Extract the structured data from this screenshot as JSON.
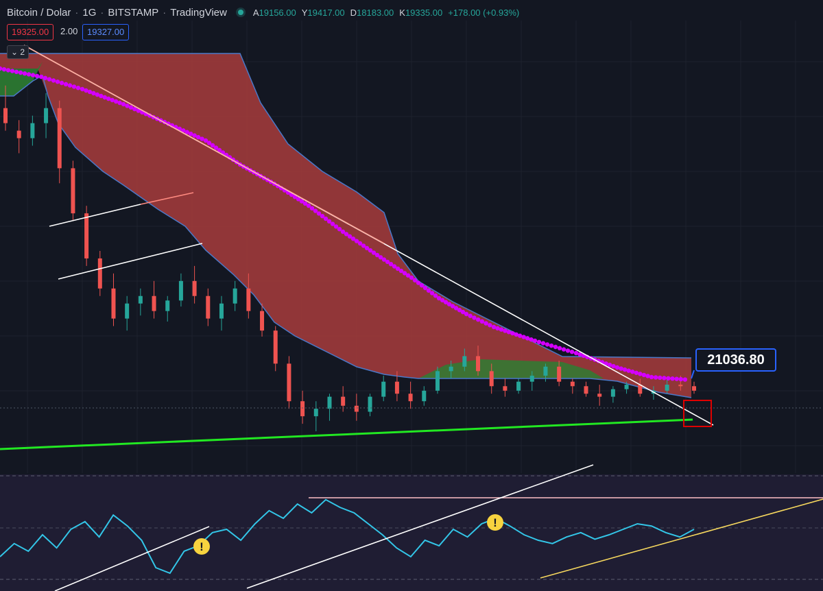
{
  "header": {
    "symbol": "Bitcoin / Dolar",
    "interval": "1G",
    "exchange": "BITSTAMP",
    "platform": "TradingView",
    "ohlc": [
      {
        "k": "A",
        "v": "19156.00"
      },
      {
        "k": "Y",
        "v": "19417.00"
      },
      {
        "k": "D",
        "v": "18183.00"
      },
      {
        "k": "K",
        "v": "19335.00"
      },
      {
        "k": "",
        "v": "+178.00 (+0.93%)"
      }
    ],
    "bid": "19325.00",
    "spread": "2.00",
    "ask": "19327.00",
    "indicator_count": "2"
  },
  "annotation": {
    "price_label": "21036.80",
    "warning_symbol": "!"
  },
  "colors": {
    "background": "#131722",
    "candle_up": "#26a69a",
    "candle_down": "#ef5350",
    "cloud_bear": "#a83c3c",
    "cloud_bull": "#2e7d32",
    "cloud_edge": "#4a78c8",
    "dotted_ma": "#d400ff",
    "support": "#22e822",
    "rsi_line": "#33c6e8",
    "rsi_trend": "#f7d85e",
    "highlight_box": "#e00000"
  },
  "chart_data": [
    {
      "type": "candlestick",
      "ohlc": [
        [
          1,
          2.2,
          2.35,
          2.05,
          2.1
        ],
        [
          2,
          2.05,
          2.12,
          1.9,
          2.0
        ],
        [
          3,
          2.0,
          2.15,
          1.95,
          2.1
        ],
        [
          4,
          2.1,
          2.3,
          2.0,
          2.2
        ],
        [
          5,
          2.2,
          2.25,
          1.7,
          1.8
        ],
        [
          6,
          1.8,
          1.85,
          1.45,
          1.5
        ],
        [
          7,
          1.5,
          1.55,
          1.15,
          1.2
        ],
        [
          8,
          1.2,
          1.25,
          0.95,
          1.0
        ],
        [
          9,
          1.0,
          1.1,
          0.75,
          0.8
        ],
        [
          10,
          0.8,
          0.95,
          0.72,
          0.9
        ],
        [
          11,
          0.9,
          1.0,
          0.82,
          0.95
        ],
        [
          12,
          0.95,
          1.05,
          0.8,
          0.85
        ],
        [
          13,
          0.85,
          0.95,
          0.78,
          0.92
        ],
        [
          14,
          0.92,
          1.1,
          0.88,
          1.05
        ],
        [
          15,
          1.05,
          1.15,
          0.9,
          0.95
        ],
        [
          16,
          0.95,
          1.0,
          0.75,
          0.8
        ],
        [
          17,
          0.8,
          0.95,
          0.72,
          0.9
        ],
        [
          18,
          0.9,
          1.05,
          0.85,
          1.0
        ],
        [
          19,
          1.0,
          1.1,
          0.8,
          0.85
        ],
        [
          20,
          0.85,
          0.9,
          0.68,
          0.72
        ],
        [
          21,
          0.72,
          0.75,
          0.45,
          0.5
        ],
        [
          22,
          0.5,
          0.55,
          0.2,
          0.25
        ],
        [
          23,
          0.25,
          0.32,
          0.1,
          0.15
        ],
        [
          24,
          0.15,
          0.25,
          0.05,
          0.2
        ],
        [
          25,
          0.2,
          0.3,
          0.12,
          0.28
        ],
        [
          26,
          0.28,
          0.35,
          0.18,
          0.22
        ],
        [
          27,
          0.22,
          0.3,
          0.12,
          0.18
        ],
        [
          28,
          0.18,
          0.3,
          0.15,
          0.28
        ],
        [
          29,
          0.28,
          0.42,
          0.25,
          0.38
        ],
        [
          30,
          0.38,
          0.45,
          0.25,
          0.3
        ],
        [
          31,
          0.3,
          0.38,
          0.2,
          0.25
        ],
        [
          32,
          0.25,
          0.35,
          0.22,
          0.32
        ],
        [
          33,
          0.32,
          0.48,
          0.3,
          0.45
        ],
        [
          34,
          0.45,
          0.52,
          0.4,
          0.48
        ],
        [
          35,
          0.48,
          0.6,
          0.45,
          0.55
        ],
        [
          36,
          0.55,
          0.62,
          0.42,
          0.45
        ],
        [
          37,
          0.45,
          0.5,
          0.3,
          0.35
        ],
        [
          38,
          0.35,
          0.4,
          0.28,
          0.32
        ],
        [
          39,
          0.32,
          0.4,
          0.3,
          0.38
        ],
        [
          40,
          0.38,
          0.45,
          0.32,
          0.42
        ],
        [
          41,
          0.42,
          0.5,
          0.38,
          0.48
        ],
        [
          42,
          0.48,
          0.52,
          0.35,
          0.38
        ],
        [
          43,
          0.38,
          0.4,
          0.3,
          0.35
        ],
        [
          44,
          0.35,
          0.38,
          0.28,
          0.3
        ],
        [
          45,
          0.3,
          0.36,
          0.22,
          0.28
        ],
        [
          46,
          0.28,
          0.35,
          0.24,
          0.33
        ],
        [
          47,
          0.33,
          0.38,
          0.3,
          0.36
        ],
        [
          48,
          0.36,
          0.4,
          0.28,
          0.3
        ],
        [
          49,
          0.3,
          0.35,
          0.26,
          0.32
        ],
        [
          50,
          0.32,
          0.4,
          0.3,
          0.36
        ],
        [
          51,
          0.36,
          0.42,
          0.32,
          0.35
        ],
        [
          52,
          0.35,
          0.38,
          0.3,
          0.32
        ]
      ],
      "ylim": [
        0,
        2.6
      ]
    },
    {
      "type": "line",
      "series": [
        {
          "values": [
            30,
            42,
            35,
            50,
            38,
            55,
            62,
            48,
            68,
            58,
            45,
            20,
            15,
            35,
            40,
            52,
            55,
            45,
            60,
            72,
            65,
            78,
            70,
            82,
            75,
            70,
            60,
            50,
            38,
            30,
            45,
            40,
            55,
            48,
            60,
            65,
            58,
            50,
            45,
            42,
            48,
            52,
            46,
            50,
            55,
            60,
            58,
            52,
            48,
            55
          ]
        },
        {
          "values": [
            null,
            null,
            null,
            null,
            null,
            null,
            null,
            null,
            null,
            null,
            null,
            null,
            null,
            null,
            null,
            null,
            null,
            null,
            null,
            null,
            null,
            null,
            null,
            null,
            null,
            null,
            null,
            null,
            null,
            null,
            null,
            null,
            null,
            null,
            null,
            null,
            null,
            null,
            null,
            null,
            null,
            null,
            null,
            null,
            null,
            null,
            null,
            null,
            null,
            null
          ]
        }
      ],
      "ylim": [
        0,
        100
      ]
    }
  ]
}
